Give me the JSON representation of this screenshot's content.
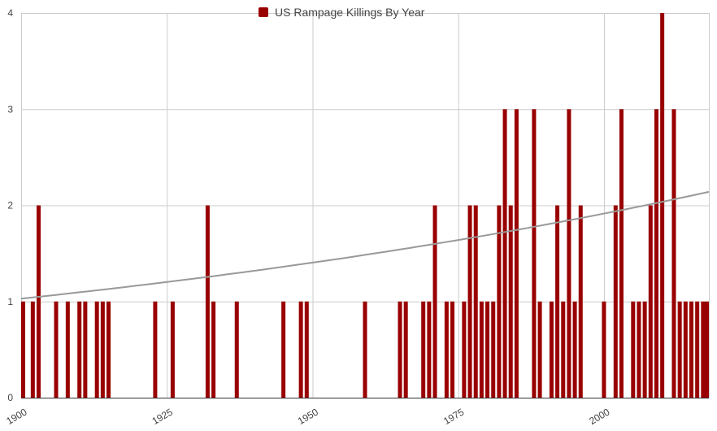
{
  "chart_data": {
    "type": "bar",
    "legend": {
      "label": "US Rampage Killings By Year",
      "position": "top"
    },
    "x_ticks": [
      "1900",
      "1925",
      "1950",
      "1975",
      "2000"
    ],
    "y_ticks": [
      "0",
      "1",
      "2",
      "3",
      "4"
    ],
    "xlim": [
      1900,
      2018
    ],
    "ylim": [
      0,
      4
    ],
    "grid": true,
    "colors": {
      "bar": "#990000",
      "trendline": "#999999",
      "grid": "#cccccc",
      "axis": "#333333",
      "tick_text": "#444444"
    },
    "series": [
      {
        "name": "US Rampage Killings By Year",
        "points": [
          {
            "x": 1900,
            "y": 1
          },
          {
            "x": 1902,
            "y": 1
          },
          {
            "x": 1903,
            "y": 2
          },
          {
            "x": 1906,
            "y": 1
          },
          {
            "x": 1908,
            "y": 1
          },
          {
            "x": 1910,
            "y": 1
          },
          {
            "x": 1911,
            "y": 1
          },
          {
            "x": 1913,
            "y": 1
          },
          {
            "x": 1914,
            "y": 1
          },
          {
            "x": 1915,
            "y": 1
          },
          {
            "x": 1923,
            "y": 1
          },
          {
            "x": 1926,
            "y": 1
          },
          {
            "x": 1932,
            "y": 2
          },
          {
            "x": 1933,
            "y": 1
          },
          {
            "x": 1937,
            "y": 1
          },
          {
            "x": 1945,
            "y": 1
          },
          {
            "x": 1948,
            "y": 1
          },
          {
            "x": 1949,
            "y": 1
          },
          {
            "x": 1959,
            "y": 1
          },
          {
            "x": 1965,
            "y": 1
          },
          {
            "x": 1966,
            "y": 1
          },
          {
            "x": 1969,
            "y": 1
          },
          {
            "x": 1970,
            "y": 1
          },
          {
            "x": 1971,
            "y": 2
          },
          {
            "x": 1973,
            "y": 1
          },
          {
            "x": 1974,
            "y": 1
          },
          {
            "x": 1976,
            "y": 1
          },
          {
            "x": 1977,
            "y": 2
          },
          {
            "x": 1978,
            "y": 2
          },
          {
            "x": 1979,
            "y": 1
          },
          {
            "x": 1980,
            "y": 1
          },
          {
            "x": 1981,
            "y": 1
          },
          {
            "x": 1982,
            "y": 2
          },
          {
            "x": 1983,
            "y": 3
          },
          {
            "x": 1984,
            "y": 2
          },
          {
            "x": 1985,
            "y": 3
          },
          {
            "x": 1988,
            "y": 3
          },
          {
            "x": 1989,
            "y": 1
          },
          {
            "x": 1991,
            "y": 1
          },
          {
            "x": 1992,
            "y": 2
          },
          {
            "x": 1993,
            "y": 1
          },
          {
            "x": 1994,
            "y": 3
          },
          {
            "x": 1995,
            "y": 1
          },
          {
            "x": 1996,
            "y": 2
          },
          {
            "x": 2000,
            "y": 1
          },
          {
            "x": 2002,
            "y": 2
          },
          {
            "x": 2003,
            "y": 3
          },
          {
            "x": 2005,
            "y": 1
          },
          {
            "x": 2006,
            "y": 1
          },
          {
            "x": 2007,
            "y": 1
          },
          {
            "x": 2008,
            "y": 2
          },
          {
            "x": 2009,
            "y": 3
          },
          {
            "x": 2010,
            "y": 4
          },
          {
            "x": 2012,
            "y": 3
          },
          {
            "x": 2013,
            "y": 1
          },
          {
            "x": 2014,
            "y": 1
          },
          {
            "x": 2015,
            "y": 1
          },
          {
            "x": 2016,
            "y": 1
          },
          {
            "x": 2017,
            "y": 1
          },
          {
            "x": 2018,
            "y": 1
          }
        ]
      }
    ],
    "trendline": {
      "type": "exponential",
      "points": [
        {
          "x": 1900,
          "y": 1.03
        },
        {
          "x": 1950,
          "y": 1.4
        },
        {
          "x": 2018,
          "y": 2.14
        }
      ]
    }
  }
}
